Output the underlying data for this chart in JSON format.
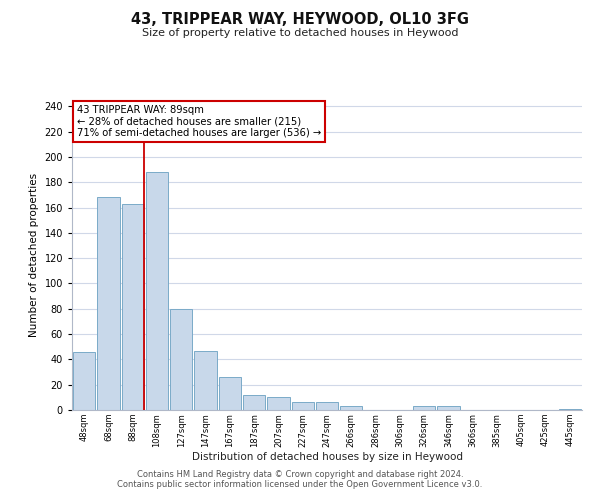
{
  "title": "43, TRIPPEAR WAY, HEYWOOD, OL10 3FG",
  "subtitle": "Size of property relative to detached houses in Heywood",
  "xlabel": "Distribution of detached houses by size in Heywood",
  "ylabel": "Number of detached properties",
  "bar_labels": [
    "48sqm",
    "68sqm",
    "88sqm",
    "108sqm",
    "127sqm",
    "147sqm",
    "167sqm",
    "187sqm",
    "207sqm",
    "227sqm",
    "247sqm",
    "266sqm",
    "286sqm",
    "306sqm",
    "326sqm",
    "346sqm",
    "366sqm",
    "385sqm",
    "405sqm",
    "425sqm",
    "445sqm"
  ],
  "bar_values": [
    46,
    168,
    163,
    188,
    80,
    47,
    26,
    12,
    10,
    6,
    6,
    3,
    0,
    0,
    3,
    3,
    0,
    0,
    0,
    0,
    1
  ],
  "bar_color": "#c8d8ea",
  "bar_edge_color": "#7aaac8",
  "property_line_index": 2,
  "property_line_color": "#cc0000",
  "ylim": [
    0,
    245
  ],
  "yticks": [
    0,
    20,
    40,
    60,
    80,
    100,
    120,
    140,
    160,
    180,
    200,
    220,
    240
  ],
  "annotation_text": "43 TRIPPEAR WAY: 89sqm\n← 28% of detached houses are smaller (215)\n71% of semi-detached houses are larger (536) →",
  "annotation_box_edge": "#cc0000",
  "footer_line1": "Contains HM Land Registry data © Crown copyright and database right 2024.",
  "footer_line2": "Contains public sector information licensed under the Open Government Licence v3.0.",
  "background_color": "#ffffff",
  "grid_color": "#d0d8e8"
}
